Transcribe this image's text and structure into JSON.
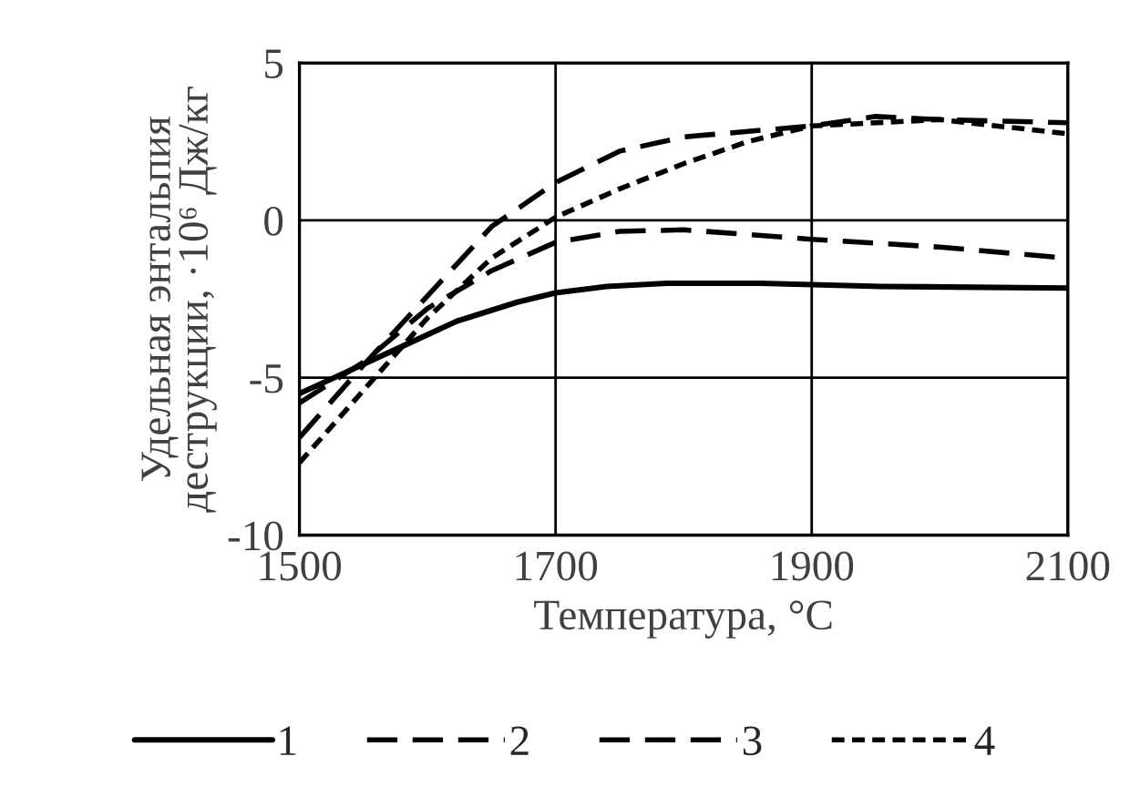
{
  "chart_data": {
    "type": "line",
    "xlabel": "Температура, °C",
    "ylabel": "Удельная энтальпия\nдеструкции, ·10⁶ Дж/кг",
    "xlim": [
      1500,
      2100
    ],
    "xticks": [
      1500,
      1700,
      1900,
      2100
    ],
    "ylim": [
      -10,
      5
    ],
    "yticks": [
      -10,
      -5,
      0,
      5
    ],
    "grid": true,
    "legend": "bottom",
    "series": [
      {
        "name": "1",
        "color": "#000000",
        "line_style": "solid",
        "x": [
          1500,
          1527,
          1575,
          1623,
          1670,
          1700,
          1740,
          1787,
          1860,
          1954,
          2100
        ],
        "values": [
          -5.5,
          -5.0,
          -4.1,
          -3.2,
          -2.6,
          -2.3,
          -2.1,
          -2.0,
          -2.0,
          -2.1,
          -2.15
        ]
      },
      {
        "name": "2",
        "color": "#000000",
        "line_style": "dashed",
        "x": [
          1500,
          1550,
          1600,
          1650,
          1700,
          1750,
          1800,
          1900,
          2000,
          2100
        ],
        "values": [
          -5.8,
          -4.5,
          -2.8,
          -1.6,
          -0.7,
          -0.35,
          -0.3,
          -0.6,
          -0.85,
          -1.2
        ]
      },
      {
        "name": "3",
        "color": "#000000",
        "line_style": "dashed",
        "x": [
          1500,
          1550,
          1600,
          1650,
          1700,
          1750,
          1800,
          1900,
          1950,
          2000,
          2100
        ],
        "values": [
          -6.9,
          -4.6,
          -2.4,
          -0.2,
          1.2,
          2.2,
          2.65,
          3.0,
          3.3,
          3.2,
          3.1
        ]
      },
      {
        "name": "4",
        "color": "#000000",
        "line_style": "dotted",
        "x": [
          1500,
          1550,
          1600,
          1650,
          1700,
          1750,
          1800,
          1850,
          1900,
          2000,
          2100
        ],
        "values": [
          -7.7,
          -5.4,
          -3.1,
          -1.2,
          0.1,
          1.0,
          1.8,
          2.5,
          3.0,
          3.2,
          2.75
        ]
      }
    ]
  }
}
